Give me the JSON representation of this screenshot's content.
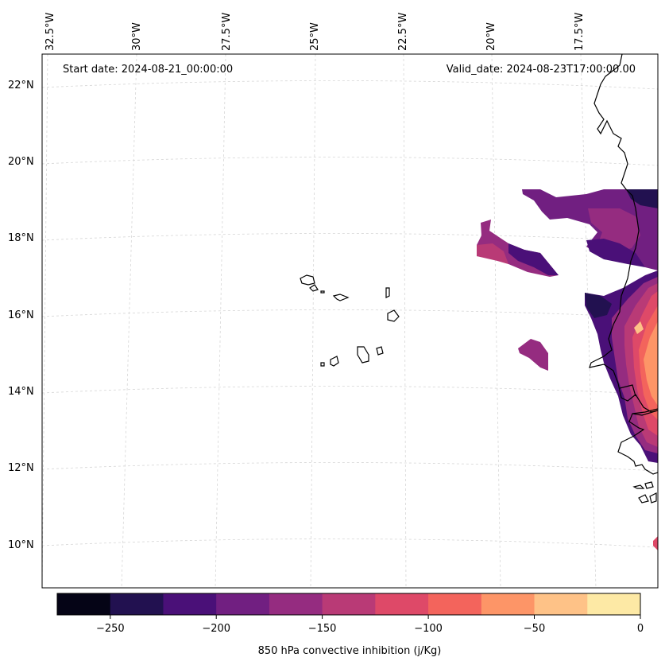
{
  "header": {
    "start_date": "Start date: 2024-08-21_00:00:00",
    "valid_date": "Valid_date: 2024-08-23T17:00:00.00"
  },
  "lon_labels": [
    "32.5°W",
    "30°W",
    "27.5°W",
    "25°W",
    "22.5°W",
    "20°W",
    "17.5°W"
  ],
  "lat_labels": [
    "22°N",
    "20°N",
    "18°N",
    "16°N",
    "14°N",
    "12°N",
    "10°N"
  ],
  "colorbar": {
    "label": "850 hPa convective inhibition (j/Kg)",
    "tick_labels": [
      "−250",
      "−200",
      "−150",
      "−100",
      "−50",
      "0"
    ],
    "range": [
      -275,
      0
    ],
    "bins": [
      {
        "from": -275,
        "to": -250,
        "color": "#050416"
      },
      {
        "from": -250,
        "to": -225,
        "color": "#221150"
      },
      {
        "from": -225,
        "to": -200,
        "color": "#4a1078"
      },
      {
        "from": -200,
        "to": -175,
        "color": "#711f81"
      },
      {
        "from": -175,
        "to": -150,
        "color": "#952c80"
      },
      {
        "from": -150,
        "to": -125,
        "color": "#b93a76"
      },
      {
        "from": -125,
        "to": -100,
        "color": "#de4968"
      },
      {
        "from": -100,
        "to": -75,
        "color": "#f3645c"
      },
      {
        "from": -75,
        "to": -50,
        "color": "#fd9567"
      },
      {
        "from": -50,
        "to": -25,
        "color": "#fec287"
      },
      {
        "from": -25,
        "to": 0,
        "color": "#fde9a5"
      }
    ]
  }
}
